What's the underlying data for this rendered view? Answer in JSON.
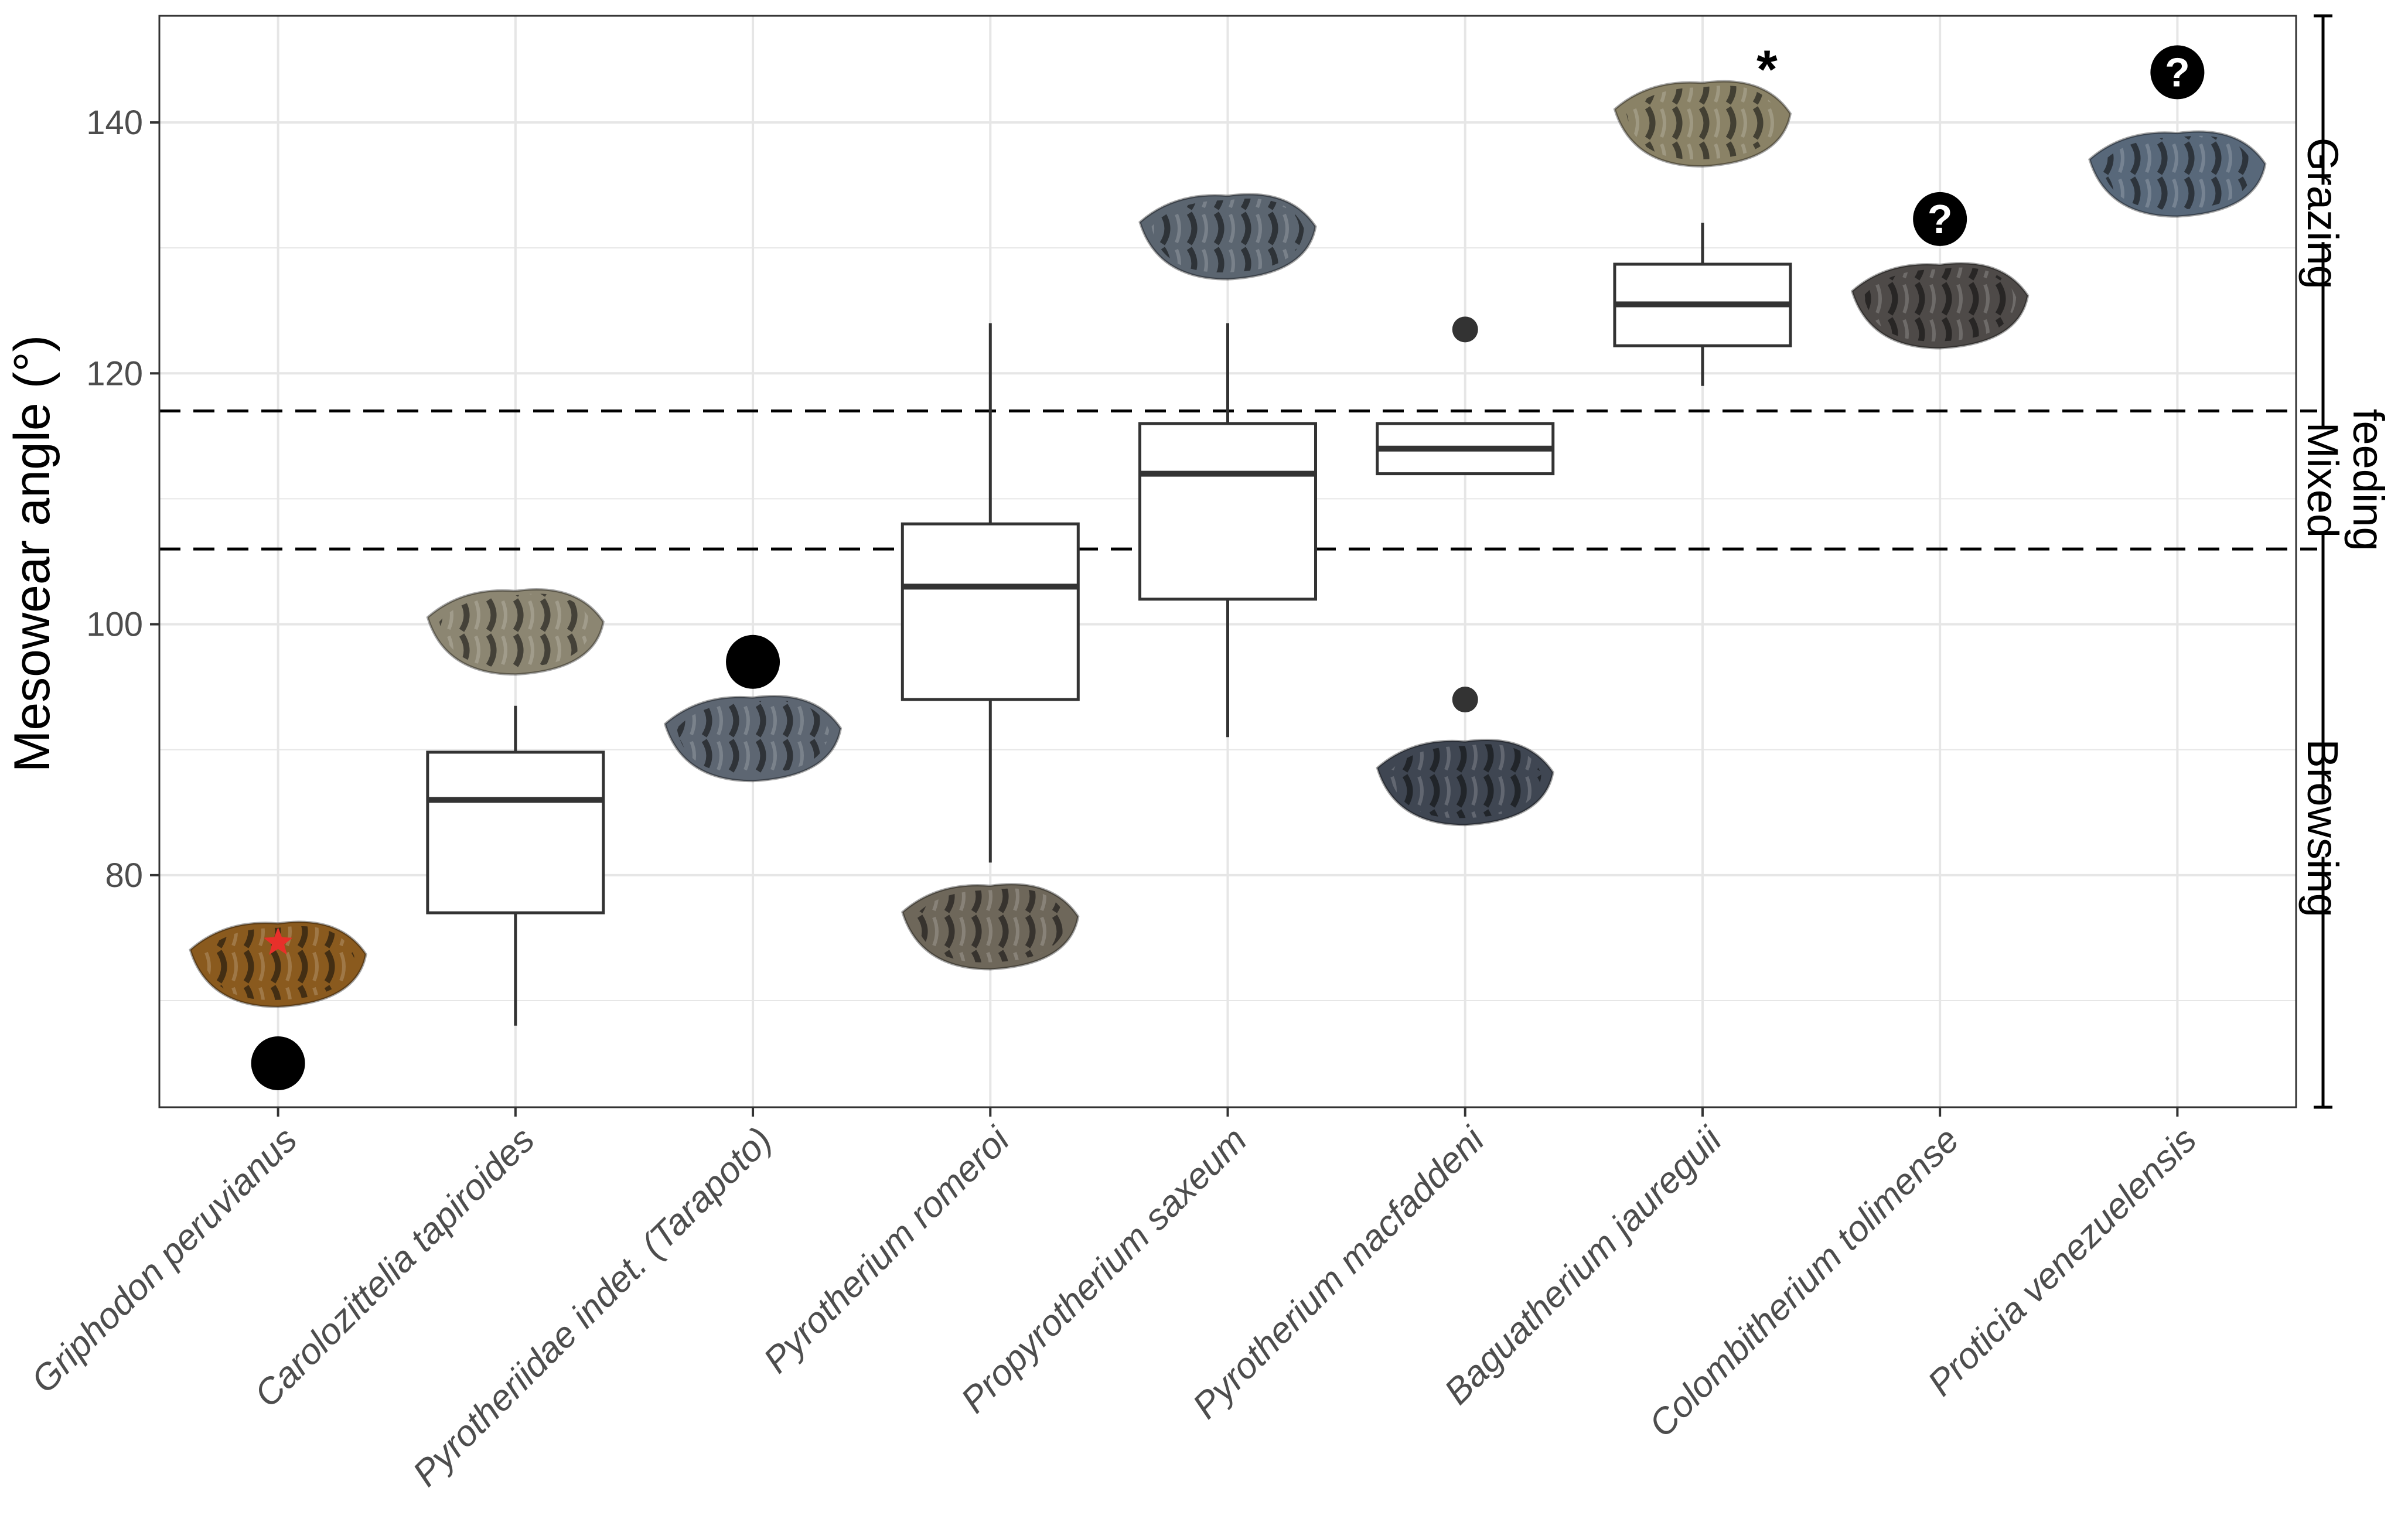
{
  "chart_data": {
    "type": "box",
    "ylabel": "Mesowear angle (°)",
    "xlabel": "",
    "ylim": [
      61.5,
      148.5
    ],
    "yticks": [
      80,
      100,
      120,
      140
    ],
    "grid": true,
    "categories": [
      "Griphodon peruvianus",
      "Carolozittelia tapiroides",
      "Pyrotheriidae indet. (Tarapoto)",
      "Pyrotherium romeroi",
      "Propyrotherium saxeum",
      "Pyrotherium macfaddeni",
      "Baguatherium jaureguii",
      "Colombitherium tolimense",
      "Proticia venezuelensis"
    ],
    "boxes": [
      {
        "category": "Carolozittelia tapiroides",
        "whisker_low": 68,
        "q1": 77,
        "median": 86,
        "q3": 89.8,
        "whisker_high": 93.5
      },
      {
        "category": "Pyrotherium romeroi",
        "whisker_low": 81,
        "q1": 94,
        "median": 103,
        "q3": 108,
        "whisker_high": 124
      },
      {
        "category": "Propyrotherium saxeum",
        "whisker_low": 91,
        "q1": 102,
        "median": 112,
        "q3": 116,
        "whisker_high": 124
      },
      {
        "category": "Pyrotherium macfaddeni",
        "whisker_low": 112,
        "q1": 112,
        "median": 114,
        "q3": 116,
        "whisker_high": 116
      },
      {
        "category": "Baguatherium jaureguii",
        "whisker_low": 119,
        "q1": 122.2,
        "median": 125.5,
        "q3": 128.7,
        "whisker_high": 132
      }
    ],
    "points": [
      {
        "category": "Griphodon peruvianus",
        "y": 65,
        "kind": "single"
      },
      {
        "category": "Pyrotheriidae indet. (Tarapoto)",
        "y": 97,
        "kind": "single"
      },
      {
        "category": "Pyrotherium macfaddeni",
        "y": 123.5,
        "kind": "outlier"
      },
      {
        "category": "Pyrotherium macfaddeni",
        "y": 94,
        "kind": "outlier"
      }
    ],
    "unknown_markers": [
      {
        "category": "Colombitherium tolimense",
        "y": 132.3
      },
      {
        "category": "Proticia venezuelensis",
        "y": 144
      }
    ],
    "reference_lines": [
      {
        "y": 106,
        "style": "dashed"
      },
      {
        "y": 117,
        "style": "dashed"
      }
    ],
    "asterisk": {
      "category": "Baguatherium jaureguii",
      "symbol": "*"
    },
    "zones": [
      {
        "label": "Browsing",
        "from": 61.5,
        "to": 106
      },
      {
        "label": "Mixed feeding",
        "lines": [
          "Mixed",
          "feeding"
        ],
        "from": 106,
        "to": 117
      },
      {
        "label": "Grazing",
        "from": 117,
        "to": 148.5
      }
    ],
    "tooth_images": [
      {
        "category": "Griphodon peruvianus",
        "y": 73,
        "color": "#8a5a1e",
        "star_color": "#e8302a"
      },
      {
        "category": "Carolozittelia tapiroides",
        "y": 99.5,
        "color": "#8c8672"
      },
      {
        "category": "Pyrotheriidae indet. (Tarapoto)",
        "y": 91,
        "color": "#5d6672"
      },
      {
        "category": "Pyrotherium romeroi",
        "y": 76,
        "color": "#6e675a"
      },
      {
        "category": "Propyrotherium saxeum",
        "y": 131,
        "color": "#5b6570"
      },
      {
        "category": "Pyrotherium macfaddeni",
        "y": 87.5,
        "color": "#3f4652"
      },
      {
        "category": "Baguatherium jaureguii",
        "y": 140,
        "color": "#8a8266"
      },
      {
        "category": "Colombitherium tolimense",
        "y": 125.5,
        "color": "#4e4a48"
      },
      {
        "category": "Proticia venezuelensis",
        "y": 136,
        "color": "#58687a"
      }
    ],
    "colors": {
      "box_line": "#333333",
      "grid": "#e6e6e6",
      "point": "#000000",
      "outlier": "#333333"
    }
  }
}
